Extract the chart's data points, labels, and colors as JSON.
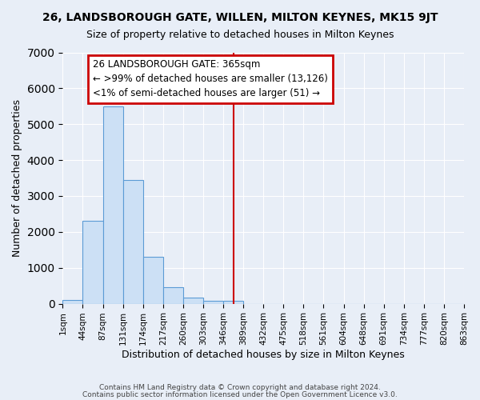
{
  "title": "26, LANDSBOROUGH GATE, WILLEN, MILTON KEYNES, MK15 9JT",
  "subtitle": "Size of property relative to detached houses in Milton Keynes",
  "xlabel": "Distribution of detached houses by size in Milton Keynes",
  "ylabel": "Number of detached properties",
  "bar_values": [
    100,
    2300,
    5500,
    3450,
    1300,
    460,
    175,
    90,
    90,
    0,
    0,
    0,
    0,
    0,
    0,
    0,
    0,
    0,
    0,
    0
  ],
  "x_labels": [
    "1sqm",
    "44sqm",
    "87sqm",
    "131sqm",
    "174sqm",
    "217sqm",
    "260sqm",
    "303sqm",
    "346sqm",
    "389sqm",
    "432sqm",
    "475sqm",
    "518sqm",
    "561sqm",
    "604sqm",
    "648sqm",
    "691sqm",
    "734sqm",
    "777sqm",
    "820sqm",
    "863sqm"
  ],
  "bar_color_fill": "#cce0f5",
  "bar_color_edge": "#5b9bd5",
  "ylim": [
    0,
    7000
  ],
  "red_line_x": 8.5,
  "red_line_color": "#cc0000",
  "annotation_text": "26 LANDSBOROUGH GATE: 365sqm\n← >99% of detached houses are smaller (13,126)\n<1% of semi-detached houses are larger (51) →",
  "annotation_box_color": "#cc0000",
  "background_color": "#e8eef7",
  "footer_line1": "Contains HM Land Registry data © Crown copyright and database right 2024.",
  "footer_line2": "Contains public sector information licensed under the Open Government Licence v3.0."
}
